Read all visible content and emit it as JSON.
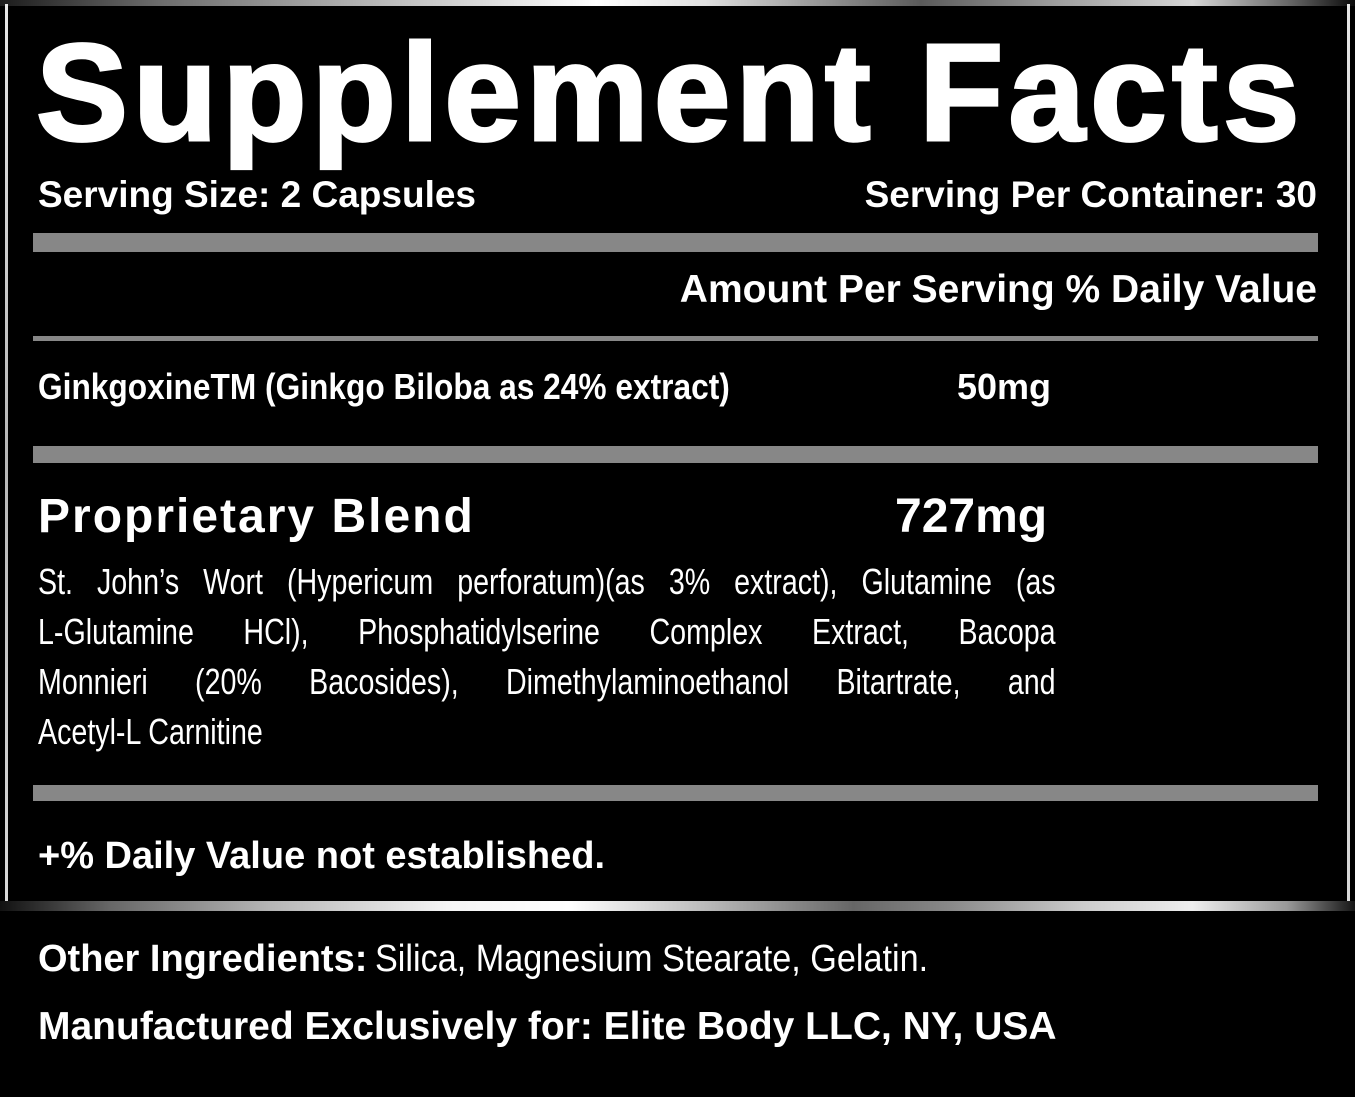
{
  "header": {
    "title": "Supplement Facts",
    "serving_size": "Serving Size: 2 Capsules",
    "servings_per_container": "Serving Per Container: 30"
  },
  "table": {
    "column_header": "Amount Per Serving % Daily Value",
    "ingredient_row": {
      "name": "GinkgoxineTM (Ginkgo Biloba as 24% extract)",
      "amount": "50mg"
    },
    "blend_row": {
      "name": "Proprietary Blend",
      "amount": "727mg"
    },
    "blend_description_lines": [
      "St. John’s Wort (Hypericum perforatum)(as 3% extract), Glutamine (as",
      "L-Glutamine HCl), Phosphatidylserine Complex Extract, Bacopa",
      "Monnieri (20% Bacosides), Dimethylaminoethanol Bitartrate, and",
      "Acetyl-L Carnitine"
    ],
    "footnote": "+% Daily Value not established."
  },
  "footer": {
    "other_ingredients_label": "Other Ingredients:",
    "other_ingredients_value": "Silica, Magnesium Stearate, Gelatin.",
    "manufactured": "Manufactured Exclusively for: Elite Body LLC, NY, USA"
  },
  "colors": {
    "bar_gray": "#878787",
    "background": "#000000",
    "text_white": "#ffffff"
  }
}
